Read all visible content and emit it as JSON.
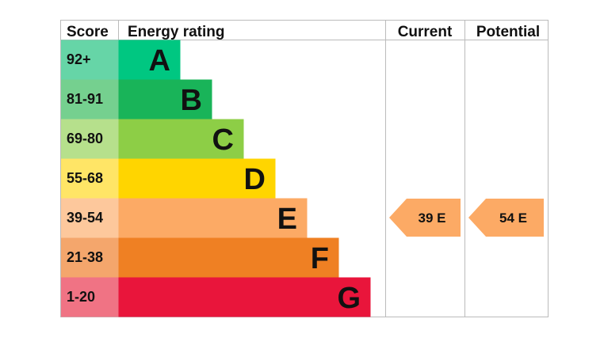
{
  "chart_data": {
    "type": "table",
    "headers": {
      "score": "Score",
      "rating": "Energy rating",
      "current": "Current",
      "potential": "Potential"
    },
    "bands": [
      {
        "letter": "A",
        "score": "92+",
        "color": "#00c781",
        "score_bg": "#66d5a7"
      },
      {
        "letter": "B",
        "score": "81-91",
        "color": "#19b459",
        "score_bg": "#75d08f"
      },
      {
        "letter": "C",
        "score": "69-80",
        "color": "#8dce46",
        "score_bg": "#b6e08c"
      },
      {
        "letter": "D",
        "score": "55-68",
        "color": "#ffd500",
        "score_bg": "#ffe566"
      },
      {
        "letter": "E",
        "score": "39-54",
        "color": "#fcaa65",
        "score_bg": "#fdc89c"
      },
      {
        "letter": "F",
        "score": "21-38",
        "color": "#ef8023",
        "score_bg": "#f4a66c"
      },
      {
        "letter": "G",
        "score": "1-20",
        "color": "#e9153b",
        "score_bg": "#f07384"
      }
    ],
    "current": {
      "value": 39,
      "band": "E",
      "label": "39  E"
    },
    "potential": {
      "value": 54,
      "band": "E",
      "label": "54  E"
    },
    "arrow_color": "#fcaa65",
    "grid_color": "#bbbbbb"
  }
}
